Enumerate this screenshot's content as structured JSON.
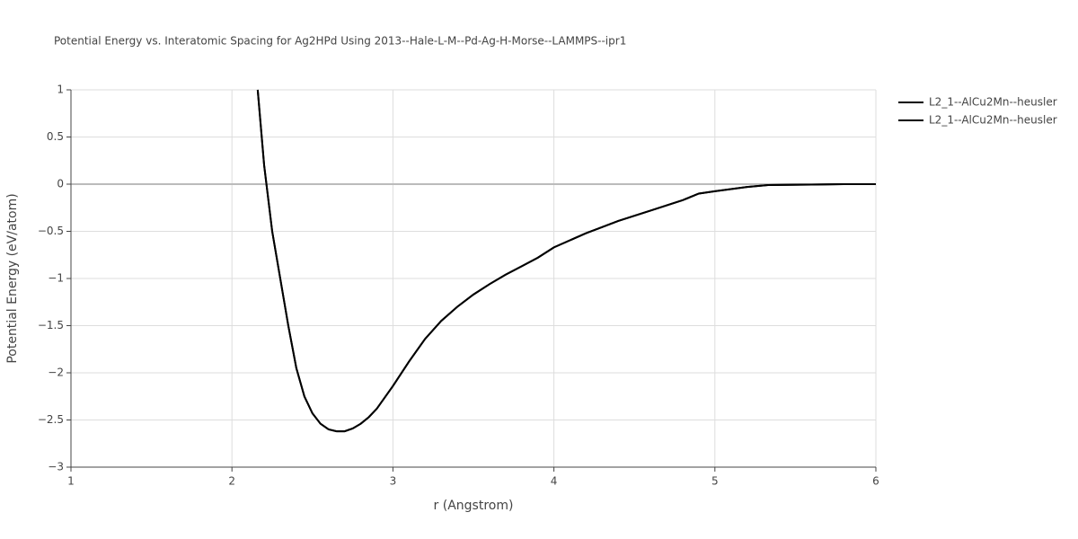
{
  "chart_data": {
    "type": "line",
    "title": "Potential Energy vs. Interatomic Spacing for Ag2HPd Using 2013--Hale-L-M--Pd-Ag-H-Morse--LAMMPS--ipr1",
    "x_label": "r (Angstrom)",
    "y_label": "Potential Energy (eV/atom)",
    "x": [
      2.16,
      2.2,
      2.25,
      2.3,
      2.35,
      2.4,
      2.45,
      2.5,
      2.55,
      2.6,
      2.65,
      2.7,
      2.75,
      2.8,
      2.85,
      2.9,
      3.0,
      3.1,
      3.2,
      3.3,
      3.4,
      3.5,
      3.6,
      3.7,
      3.8,
      3.9,
      4.0,
      4.2,
      4.4,
      4.6,
      4.8,
      4.9,
      5.0,
      5.2,
      5.33,
      5.6,
      5.8,
      6.0
    ],
    "series": [
      {
        "name": "L2_1--AlCu2Mn--heusler",
        "color": "#000000",
        "values": [
          1.0,
          0.2,
          -0.5,
          -1.0,
          -1.5,
          -1.95,
          -2.25,
          -2.43,
          -2.54,
          -2.6,
          -2.62,
          -2.62,
          -2.59,
          -2.54,
          -2.47,
          -2.38,
          -2.14,
          -1.88,
          -1.64,
          -1.45,
          -1.3,
          -1.17,
          -1.06,
          -0.96,
          -0.87,
          -0.78,
          -0.67,
          -0.52,
          -0.39,
          -0.28,
          -0.17,
          -0.1,
          -0.075,
          -0.03,
          -0.01,
          -0.005,
          0,
          0
        ]
      },
      {
        "name": "L2_1--AlCu2Mn--heusler",
        "color": "#000000",
        "values": [
          1.0,
          0.2,
          -0.5,
          -1.0,
          -1.5,
          -1.95,
          -2.25,
          -2.43,
          -2.54,
          -2.6,
          -2.62,
          -2.62,
          -2.59,
          -2.54,
          -2.47,
          -2.38,
          -2.14,
          -1.88,
          -1.64,
          -1.45,
          -1.3,
          -1.17,
          -1.06,
          -0.96,
          -0.87,
          -0.78,
          -0.67,
          -0.52,
          -0.39,
          -0.28,
          -0.17,
          -0.1,
          -0.075,
          -0.03,
          -0.01,
          -0.005,
          0,
          0
        ]
      }
    ],
    "xlim": [
      1,
      6
    ],
    "xticks": [
      1,
      2,
      3,
      4,
      5,
      6
    ],
    "ylim": [
      -3,
      1
    ],
    "yticks": [
      {
        "value": -3,
        "label": "−3"
      },
      {
        "value": -2.5,
        "label": "−2.5"
      },
      {
        "value": -2,
        "label": "−2"
      },
      {
        "value": -1.5,
        "label": "−1.5"
      },
      {
        "value": -1,
        "label": "−1"
      },
      {
        "value": -0.5,
        "label": "−0.5"
      },
      0,
      0.5,
      1
    ],
    "grid": true
  }
}
